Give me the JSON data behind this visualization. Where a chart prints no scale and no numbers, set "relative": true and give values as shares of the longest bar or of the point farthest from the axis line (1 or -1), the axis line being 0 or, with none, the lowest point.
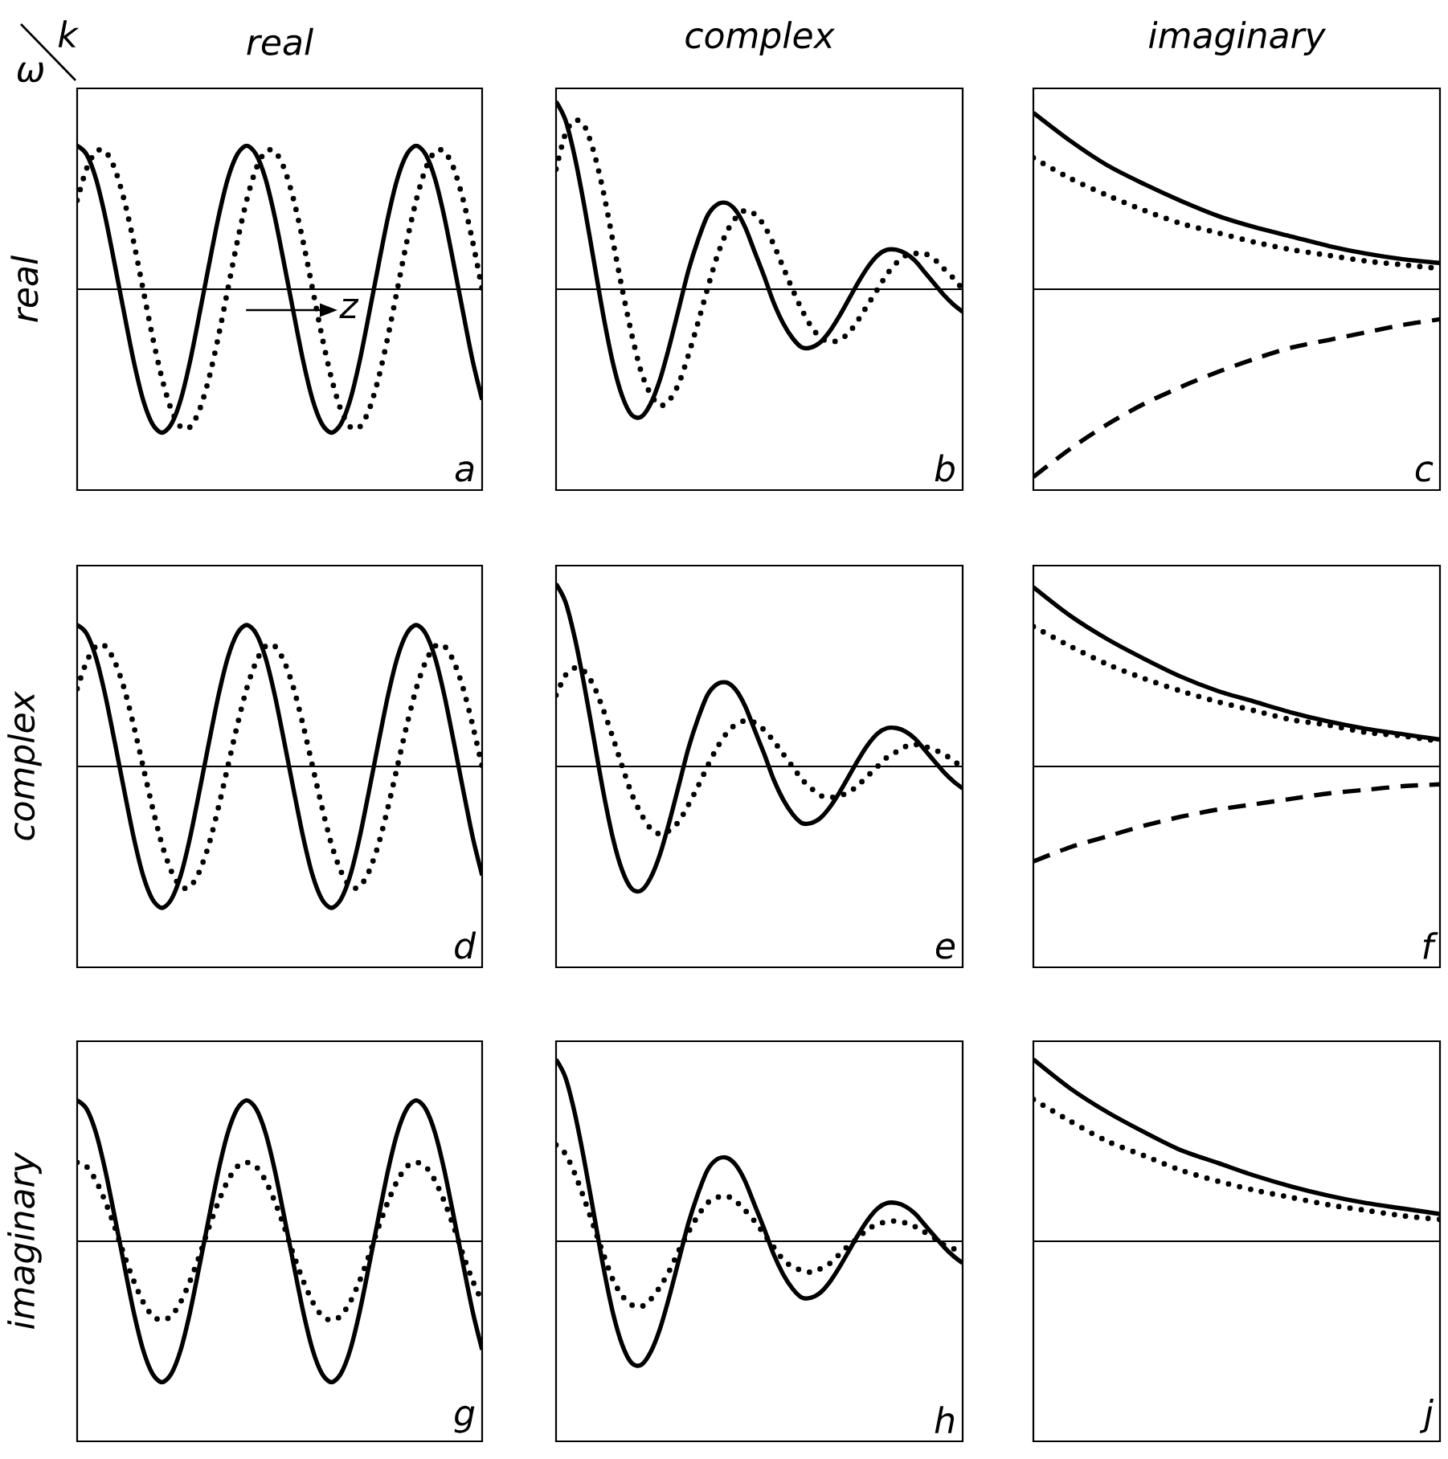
{
  "chart_data": [
    {
      "type": "line",
      "title": "real",
      "ylabel": "real",
      "relative": true,
      "categories": [
        null,
        null,
        null,
        null,
        null,
        null,
        null,
        null,
        null,
        null,
        null,
        null,
        null,
        null,
        null,
        null,
        null,
        null,
        null,
        null,
        null,
        null,
        null,
        null,
        null,
        null,
        null,
        null,
        null,
        null,
        null,
        null,
        null,
        null,
        null,
        null,
        null,
        null,
        null,
        null,
        null,
        null,
        null,
        null
      ],
      "series": [
        {
          "color": "#000000",
          "line_style": "solid",
          "values": [
            1,
            0.94,
            0.77,
            0.5,
            0.17,
            -0.17,
            -0.5,
            -0.77,
            -0.94,
            -1,
            -0.94,
            -0.77,
            -0.5,
            -0.17,
            0.17,
            0.5,
            0.77,
            0.94,
            1,
            0.94,
            0.77,
            0.5,
            0.17,
            -0.17,
            -0.5,
            -0.77,
            -0.94,
            -1,
            -0.94,
            -0.77,
            -0.5,
            -0.17,
            0.17,
            0.5,
            0.77,
            0.94,
            1,
            0.94,
            0.77,
            0.5,
            0.17,
            -0.17,
            -0.5,
            -0.77
          ]
        },
        {
          "color": "#000000",
          "line_style": "dotted",
          "values": [
            0.62,
            0.84,
            0.96,
            0.96,
            0.84,
            0.62,
            0.33,
            0,
            -0.33,
            -0.62,
            -0.84,
            -0.96,
            -0.96,
            -0.84,
            -0.62,
            -0.33,
            0,
            0.33,
            0.62,
            0.84,
            0.96,
            0.96,
            0.84,
            0.62,
            0.33,
            0,
            -0.33,
            -0.62,
            -0.84,
            -0.96,
            -0.96,
            -0.84,
            -0.62,
            -0.33,
            0,
            0.33,
            0.62,
            0.84,
            0.96,
            0.96,
            0.84,
            0.62,
            0.33,
            0
          ]
        }
      ],
      "annotations": [
        "a",
        "z",
        "ω",
        "k"
      ]
    },
    {
      "type": "line",
      "title": "complex",
      "relative": true,
      "categories": [
        null,
        null,
        null,
        null,
        null,
        null,
        null,
        null,
        null,
        null,
        null,
        null,
        null,
        null,
        null,
        null,
        null,
        null,
        null,
        null,
        null,
        null,
        null,
        null,
        null,
        null,
        null,
        null,
        null,
        null,
        null,
        null,
        null,
        null,
        null,
        null,
        null,
        null,
        null,
        null,
        null,
        null,
        null,
        null
      ],
      "series": [
        {
          "color": "#000000",
          "line_style": "solid",
          "values": [
            1,
            0.9,
            0.7,
            0.44,
            0.15,
            -0.14,
            -0.39,
            -0.57,
            -0.67,
            -0.68,
            -0.61,
            -0.48,
            -0.3,
            -0.1,
            0.1,
            0.26,
            0.39,
            0.45,
            0.46,
            0.42,
            0.33,
            0.2,
            0.07,
            -0.07,
            -0.18,
            -0.26,
            -0.31,
            -0.31,
            -0.28,
            -0.22,
            -0.14,
            -0.05,
            0.04,
            0.12,
            0.18,
            0.21,
            0.21,
            0.19,
            0.15,
            0.09,
            0.03,
            -0.03,
            -0.08,
            -0.12
          ]
        },
        {
          "color": "#000000",
          "line_style": "dotted",
          "values": [
            0.64,
            0.83,
            0.9,
            0.87,
            0.73,
            0.52,
            0.26,
            0,
            -0.24,
            -0.44,
            -0.56,
            -0.62,
            -0.59,
            -0.5,
            -0.35,
            -0.18,
            0,
            0.17,
            0.3,
            0.38,
            0.42,
            0.4,
            0.34,
            0.24,
            0.12,
            0,
            -0.11,
            -0.2,
            -0.26,
            -0.28,
            -0.27,
            -0.23,
            -0.16,
            -0.08,
            0,
            0.08,
            0.14,
            0.18,
            0.19,
            0.19,
            0.16,
            0.11,
            0.06,
            0
          ]
        }
      ],
      "annotations": [
        "b"
      ]
    },
    {
      "type": "line",
      "title": "imaginary",
      "relative": true,
      "categories": [
        null,
        null,
        null,
        null,
        null,
        null,
        null,
        null,
        null,
        null,
        null,
        null
      ],
      "series": [
        {
          "color": "#000000",
          "line_style": "solid",
          "values": [
            0.94,
            0.79,
            0.66,
            0.56,
            0.47,
            0.39,
            0.33,
            0.28,
            0.23,
            0.19,
            0.16,
            0.14
          ]
        },
        {
          "color": "#000000",
          "line_style": "dotted",
          "values": [
            0.7,
            0.59,
            0.5,
            0.42,
            0.35,
            0.3,
            0.25,
            0.21,
            0.18,
            0.15,
            0.13,
            0.11
          ]
        },
        {
          "color": "#000000",
          "line_style": "dashed",
          "values": [
            -1,
            -0.85,
            -0.72,
            -0.61,
            -0.52,
            -0.44,
            -0.37,
            -0.31,
            -0.27,
            -0.23,
            -0.19,
            -0.16
          ]
        }
      ],
      "annotations": [
        "c"
      ]
    },
    {
      "type": "line",
      "ylabel": "complex",
      "relative": true,
      "categories": [
        null,
        null,
        null,
        null,
        null,
        null,
        null,
        null,
        null,
        null,
        null,
        null,
        null,
        null,
        null,
        null,
        null,
        null,
        null,
        null,
        null,
        null,
        null,
        null,
        null,
        null,
        null,
        null,
        null,
        null,
        null,
        null,
        null,
        null,
        null,
        null,
        null,
        null,
        null,
        null,
        null,
        null,
        null,
        null
      ],
      "series": [
        {
          "color": "#000000",
          "line_style": "solid",
          "values": [
            1,
            0.94,
            0.77,
            0.5,
            0.17,
            -0.17,
            -0.5,
            -0.77,
            -0.94,
            -1,
            -0.94,
            -0.77,
            -0.5,
            -0.17,
            0.17,
            0.5,
            0.77,
            0.94,
            1,
            0.94,
            0.77,
            0.5,
            0.17,
            -0.17,
            -0.5,
            -0.77,
            -0.94,
            -1,
            -0.94,
            -0.77,
            -0.5,
            -0.17,
            0.17,
            0.5,
            0.77,
            0.94,
            1,
            0.94,
            0.77,
            0.5,
            0.17,
            -0.17,
            -0.5,
            -0.77
          ]
        },
        {
          "color": "#000000",
          "line_style": "dotted",
          "values": [
            0.55,
            0.74,
            0.85,
            0.85,
            0.74,
            0.55,
            0.29,
            0,
            -0.29,
            -0.55,
            -0.74,
            -0.85,
            -0.85,
            -0.74,
            -0.55,
            -0.29,
            0,
            0.29,
            0.55,
            0.74,
            0.85,
            0.85,
            0.74,
            0.55,
            0.29,
            0,
            -0.29,
            -0.55,
            -0.74,
            -0.85,
            -0.85,
            -0.74,
            -0.55,
            -0.29,
            0,
            0.29,
            0.55,
            0.74,
            0.85,
            0.85,
            0.74,
            0.55,
            0.29,
            0
          ]
        }
      ],
      "annotations": [
        "d"
      ]
    },
    {
      "type": "line",
      "relative": true,
      "categories": [
        null,
        null,
        null,
        null,
        null,
        null,
        null,
        null,
        null,
        null,
        null,
        null,
        null,
        null,
        null,
        null,
        null,
        null,
        null,
        null,
        null,
        null,
        null,
        null,
        null,
        null,
        null,
        null,
        null,
        null,
        null,
        null,
        null,
        null,
        null,
        null,
        null,
        null,
        null,
        null,
        null,
        null,
        null,
        null
      ],
      "series": [
        {
          "color": "#000000",
          "line_style": "solid",
          "values": [
            1,
            0.9,
            0.7,
            0.44,
            0.15,
            -0.14,
            -0.39,
            -0.57,
            -0.67,
            -0.68,
            -0.61,
            -0.48,
            -0.3,
            -0.1,
            0.1,
            0.26,
            0.39,
            0.45,
            0.46,
            0.42,
            0.33,
            0.2,
            0.07,
            -0.07,
            -0.18,
            -0.26,
            -0.31,
            -0.31,
            -0.28,
            -0.22,
            -0.14,
            -0.05,
            0.04,
            0.12,
            0.18,
            0.21,
            0.21,
            0.19,
            0.15,
            0.09,
            0.03,
            -0.03,
            -0.08,
            -0.12
          ]
        },
        {
          "color": "#000000",
          "line_style": "dotted",
          "values": [
            0.39,
            0.5,
            0.54,
            0.52,
            0.44,
            0.31,
            0.16,
            0,
            -0.15,
            -0.26,
            -0.34,
            -0.37,
            -0.35,
            -0.3,
            -0.21,
            -0.11,
            0,
            0.1,
            0.18,
            0.23,
            0.25,
            0.24,
            0.2,
            0.14,
            0.07,
            0,
            -0.07,
            -0.12,
            -0.16,
            -0.17,
            -0.16,
            -0.14,
            -0.1,
            -0.05,
            0,
            0.05,
            0.08,
            0.11,
            0.12,
            0.11,
            0.09,
            0.07,
            0.03,
            0
          ]
        }
      ],
      "annotations": [
        "e"
      ]
    },
    {
      "type": "line",
      "relative": true,
      "categories": [
        null,
        null,
        null,
        null,
        null,
        null,
        null,
        null,
        null,
        null,
        null,
        null
      ],
      "series": [
        {
          "color": "#000000",
          "line_style": "solid",
          "values": [
            1,
            0.84,
            0.71,
            0.6,
            0.5,
            0.42,
            0.36,
            0.3,
            0.25,
            0.21,
            0.18,
            0.15
          ]
        },
        {
          "color": "#000000",
          "line_style": "dotted",
          "values": [
            0.78,
            0.67,
            0.57,
            0.49,
            0.42,
            0.36,
            0.31,
            0.26,
            0.23,
            0.19,
            0.17,
            0.14
          ]
        },
        {
          "color": "#000000",
          "line_style": "dashed",
          "values": [
            -0.53,
            -0.45,
            -0.39,
            -0.33,
            -0.28,
            -0.24,
            -0.21,
            -0.18,
            -0.15,
            -0.13,
            -0.11,
            -0.1
          ]
        }
      ],
      "annotations": [
        "f"
      ]
    },
    {
      "type": "line",
      "ylabel": "imaginary",
      "relative": true,
      "categories": [
        null,
        null,
        null,
        null,
        null,
        null,
        null,
        null,
        null,
        null,
        null,
        null,
        null,
        null,
        null,
        null,
        null,
        null,
        null,
        null,
        null,
        null,
        null,
        null,
        null,
        null,
        null,
        null,
        null,
        null,
        null,
        null,
        null,
        null,
        null,
        null,
        null,
        null,
        null,
        null,
        null,
        null,
        null,
        null
      ],
      "series": [
        {
          "color": "#000000",
          "line_style": "solid",
          "values": [
            1,
            0.94,
            0.77,
            0.5,
            0.17,
            -0.17,
            -0.5,
            -0.77,
            -0.94,
            -1,
            -0.94,
            -0.77,
            -0.5,
            -0.17,
            0.17,
            0.5,
            0.77,
            0.94,
            1,
            0.94,
            0.77,
            0.5,
            0.17,
            -0.17,
            -0.5,
            -0.77,
            -0.94,
            -1,
            -0.94,
            -0.77,
            -0.5,
            -0.17,
            0.17,
            0.5,
            0.77,
            0.94,
            1,
            0.94,
            0.77,
            0.5,
            0.17,
            -0.17,
            -0.5,
            -0.77
          ]
        },
        {
          "color": "#000000",
          "line_style": "dotted",
          "values": [
            0.56,
            0.53,
            0.43,
            0.28,
            0.1,
            -0.1,
            -0.28,
            -0.43,
            -0.53,
            -0.56,
            -0.53,
            -0.43,
            -0.28,
            -0.1,
            0.1,
            0.28,
            0.43,
            0.53,
            0.56,
            0.53,
            0.43,
            0.28,
            0.1,
            -0.1,
            -0.28,
            -0.43,
            -0.53,
            -0.56,
            -0.53,
            -0.43,
            -0.28,
            -0.1,
            0.1,
            0.28,
            0.43,
            0.53,
            0.56,
            0.53,
            0.43,
            0.28,
            0.1,
            -0.1,
            -0.28,
            -0.43
          ]
        }
      ],
      "annotations": [
        "g"
      ]
    },
    {
      "type": "line",
      "relative": true,
      "categories": [
        null,
        null,
        null,
        null,
        null,
        null,
        null,
        null,
        null,
        null,
        null,
        null,
        null,
        null,
        null,
        null,
        null,
        null,
        null,
        null,
        null,
        null,
        null,
        null,
        null,
        null,
        null,
        null,
        null,
        null,
        null,
        null,
        null,
        null,
        null,
        null,
        null,
        null,
        null,
        null,
        null,
        null,
        null,
        null
      ],
      "series": [
        {
          "color": "#000000",
          "line_style": "solid",
          "values": [
            1,
            0.9,
            0.7,
            0.44,
            0.15,
            -0.14,
            -0.39,
            -0.57,
            -0.67,
            -0.68,
            -0.61,
            -0.48,
            -0.3,
            -0.1,
            0.1,
            0.26,
            0.39,
            0.45,
            0.46,
            0.42,
            0.33,
            0.2,
            0.07,
            -0.07,
            -0.18,
            -0.26,
            -0.31,
            -0.31,
            -0.28,
            -0.22,
            -0.14,
            -0.05,
            0.04,
            0.12,
            0.18,
            0.21,
            0.21,
            0.19,
            0.15,
            0.09,
            0.03,
            -0.03,
            -0.08,
            -0.12
          ]
        },
        {
          "color": "#000000",
          "line_style": "dotted",
          "values": [
            0.53,
            0.48,
            0.37,
            0.23,
            0.08,
            -0.07,
            -0.21,
            -0.3,
            -0.35,
            -0.36,
            -0.32,
            -0.25,
            -0.16,
            -0.05,
            0.05,
            0.14,
            0.21,
            0.24,
            0.25,
            0.22,
            0.17,
            0.11,
            0.04,
            -0.03,
            -0.1,
            -0.14,
            -0.16,
            -0.17,
            -0.15,
            -0.12,
            -0.07,
            -0.02,
            0.02,
            0.07,
            0.09,
            0.11,
            0.11,
            0.1,
            0.08,
            0.05,
            0.02,
            -0.02,
            -0.04,
            -0.06
          ]
        }
      ],
      "annotations": [
        "h"
      ]
    },
    {
      "type": "line",
      "relative": true,
      "categories": [
        null,
        null,
        null,
        null,
        null,
        null,
        null,
        null,
        null,
        null,
        null,
        null
      ],
      "series": [
        {
          "color": "#000000",
          "line_style": "solid",
          "values": [
            1,
            0.84,
            0.71,
            0.6,
            0.5,
            0.43,
            0.36,
            0.3,
            0.25,
            0.21,
            0.18,
            0.15
          ]
        },
        {
          "color": "#000000",
          "line_style": "dotted",
          "values": [
            0.78,
            0.66,
            0.55,
            0.47,
            0.39,
            0.33,
            0.28,
            0.24,
            0.2,
            0.17,
            0.14,
            0.12
          ]
        }
      ],
      "annotations": [
        "j"
      ]
    }
  ]
}
